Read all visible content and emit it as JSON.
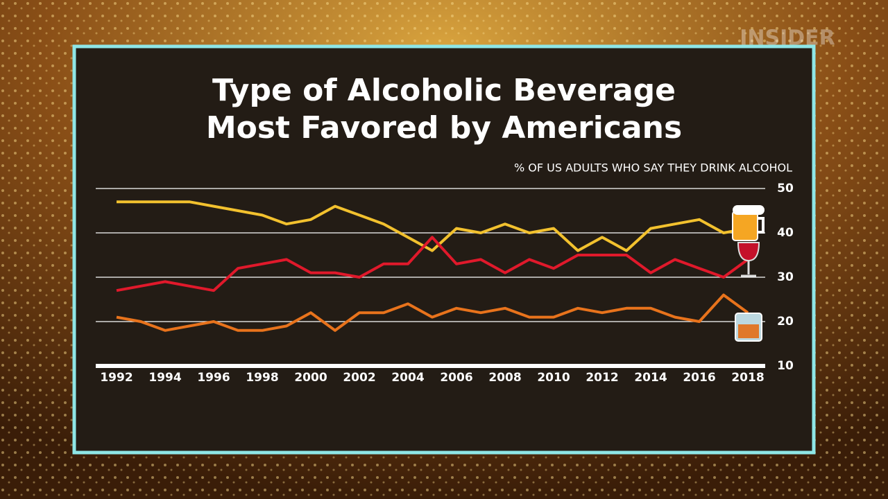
{
  "watermark": "INSIDER",
  "chart_data": {
    "type": "line",
    "title": "Type of Alcoholic Beverage Most Favored by Americans",
    "subtitle": "% OF US ADULTS WHO SAY THEY DRINK ALCOHOL",
    "x": [
      1992,
      1993,
      1994,
      1995,
      1996,
      1997,
      1998,
      1999,
      2000,
      2001,
      2002,
      2003,
      2004,
      2005,
      2006,
      2007,
      2008,
      2009,
      2010,
      2011,
      2012,
      2013,
      2014,
      2015,
      2016,
      2017,
      2018
    ],
    "xlim": [
      1992,
      2018
    ],
    "xticks": [
      1992,
      1994,
      1996,
      1998,
      2000,
      2002,
      2004,
      2006,
      2008,
      2010,
      2012,
      2014,
      2016,
      2018
    ],
    "ylim": [
      10,
      50
    ],
    "yticks": [
      10,
      20,
      30,
      40,
      50
    ],
    "grid": true,
    "series": [
      {
        "color": "#f2c12e",
        "values": [
          47,
          47,
          47,
          47,
          46,
          45,
          44,
          42,
          43,
          46,
          44,
          42,
          39,
          36,
          41,
          40,
          42,
          40,
          41,
          36,
          39,
          36,
          41,
          42,
          43,
          40,
          41
        ]
      },
      {
        "color": "#e0192b",
        "values": [
          27,
          28,
          29,
          28,
          27,
          32,
          33,
          34,
          31,
          31,
          30,
          33,
          33,
          39,
          33,
          34,
          31,
          34,
          32,
          35,
          35,
          35,
          31,
          34,
          32,
          30,
          34
        ]
      },
      {
        "color": "#e8731c",
        "values": [
          21,
          20,
          18,
          19,
          20,
          18,
          18,
          19,
          22,
          18,
          22,
          22,
          24,
          21,
          23,
          22,
          23,
          21,
          21,
          23,
          22,
          23,
          23,
          21,
          20,
          26,
          22
        ]
      }
    ]
  }
}
